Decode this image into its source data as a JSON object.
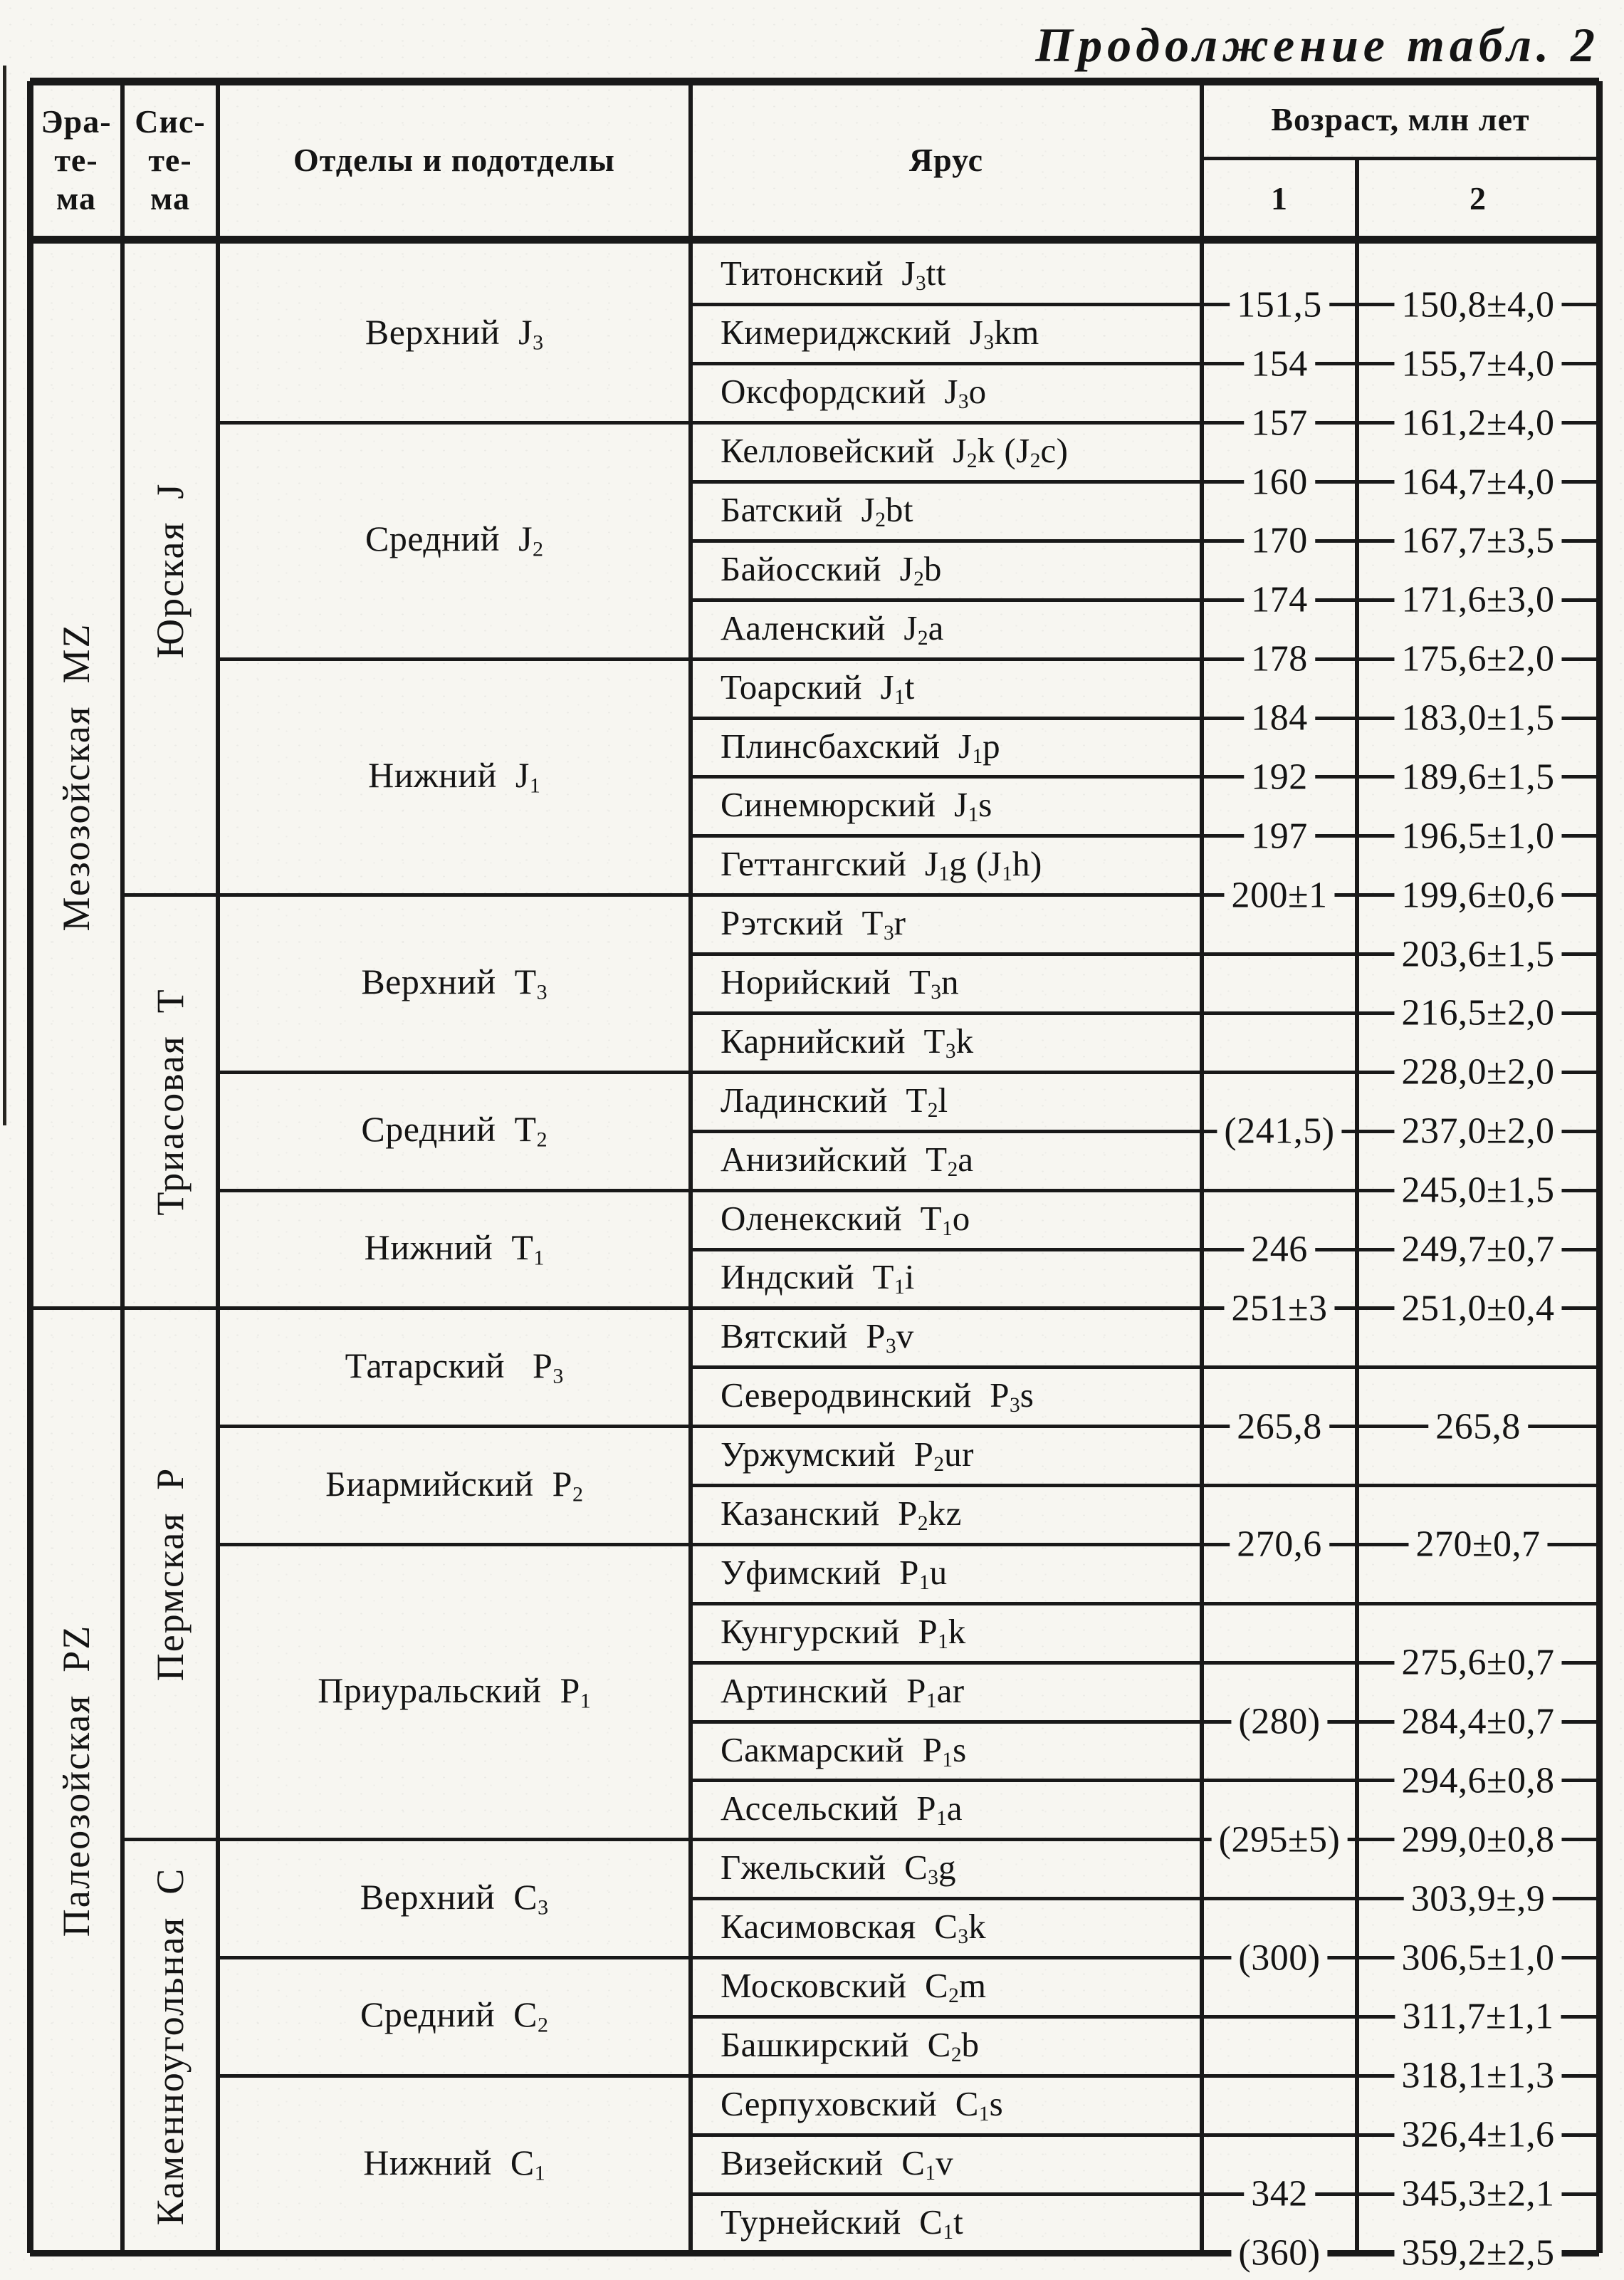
{
  "title": "Продолжение табл. 2",
  "header": {
    "era": "Эра-\nте-\nма",
    "system": "Сис-\nте-\nма",
    "series": "Отделы и подотделы",
    "stage": "Ярус",
    "age": "Возраст, млн лет",
    "age_col1": "1",
    "age_col2": "2"
  },
  "eras": [
    {
      "label": "Мезозойская  MZ",
      "rows": 18
    },
    {
      "label": "Палеозойская  PZ",
      "rows": 16
    }
  ],
  "systems": [
    {
      "label": "Юрская  J",
      "rows": 11
    },
    {
      "label": "Триасовая  T",
      "rows": 7
    },
    {
      "label": "Пермская  P",
      "rows": 9
    },
    {
      "label": "Каменноугольная  C",
      "rows": 7
    }
  ],
  "series": [
    {
      "label": "Верхний  J{3}",
      "rows": 3
    },
    {
      "label": "Средний  J{2}",
      "rows": 4
    },
    {
      "label": "Нижний  J{1}",
      "rows": 4
    },
    {
      "label": "Верхний  T{3}",
      "rows": 3
    },
    {
      "label": "Средний  T{2}",
      "rows": 2
    },
    {
      "label": "Нижний  T{1}",
      "rows": 2
    },
    {
      "label": "Татарский   P{3}",
      "rows": 2
    },
    {
      "label": "Биармийский  P{2}",
      "rows": 2
    },
    {
      "label": "Приуральский  P{1}",
      "rows": 5
    },
    {
      "label": "Верхний  C{3}",
      "rows": 2
    },
    {
      "label": "Средний  C{2}",
      "rows": 2
    },
    {
      "label": "Нижний  C{1}",
      "rows": 3
    }
  ],
  "stages": [
    "Титонский  J{3}tt",
    "Кимериджский  J{3}km",
    "Оксфордский  J{3}o",
    "Келловейский  J{2}k (J{2}c)",
    "Батский  J{2}bt",
    "Байосский  J{2}b",
    "Ааленский  J{2}a",
    "Тоарский  J{1}t",
    "Плинсбахский  J{1}p",
    "Синемюрский  J{1}s",
    "Геттангский  J{1}g (J{1}h)",
    "Рэтский  T{3}r",
    "Норийский  T{3}n",
    "Карнийский  T{3}k",
    "Ладинский  T{2}l",
    "Анизийский  T{2}a",
    "Оленекский  T{1}o",
    "Индский  T{1}i",
    "Вятский  P{3}v",
    "Северодвинский  P{3}s",
    "Уржумский  P{2}ur",
    "Казанский  P{2}kz",
    "Уфимский  P{1}u",
    "Кунгурский  P{1}k",
    "Артинский  P{1}ar",
    "Сакмарский  P{1}s",
    "Ассельский  P{1}a",
    "Гжельский  C{3}g",
    "Касимовская  C{3}k",
    "Московский  C{2}m",
    "Башкирский  C{2}b",
    "Серпуховский  C{1}s",
    "Визейский  C{1}v",
    "Турнейский  C{1}t"
  ],
  "boundary_ages_col1": [
    "151,5",
    "154",
    "157",
    "160",
    "170",
    "174",
    "178",
    "184",
    "192",
    "197",
    "200±1",
    null,
    null,
    null,
    "(241,5)",
    null,
    "246",
    "251±3",
    null,
    "265,8",
    null,
    "270,6",
    null,
    null,
    "(280)",
    null,
    "(295±5)",
    null,
    "(300)",
    null,
    null,
    null,
    "342",
    "(360)"
  ],
  "boundary_ages_col2": [
    "150,8±4,0",
    "155,7±4,0",
    "161,2±4,0",
    "164,7±4,0",
    "167,7±3,5",
    "171,6±3,0",
    "175,6±2,0",
    "183,0±1,5",
    "189,6±1,5",
    "196,5±1,0",
    "199,6±0,6",
    "203,6±1,5",
    "216,5±2,0",
    "228,0±2,0",
    "237,0±2,0",
    "245,0±1,5",
    "249,7±0,7",
    "251,0±0,4",
    null,
    "265,8",
    null,
    "270±0,7",
    null,
    "275,6±0,7",
    "284,4±0,7",
    "294,6±0,8",
    "299,0±0,8",
    "303,9±,9",
    "306,5±1,0",
    "311,7±1,1",
    "318,1±1,3",
    "326,4±1,6",
    "345,3±2,1",
    "359,2±2,5"
  ]
}
